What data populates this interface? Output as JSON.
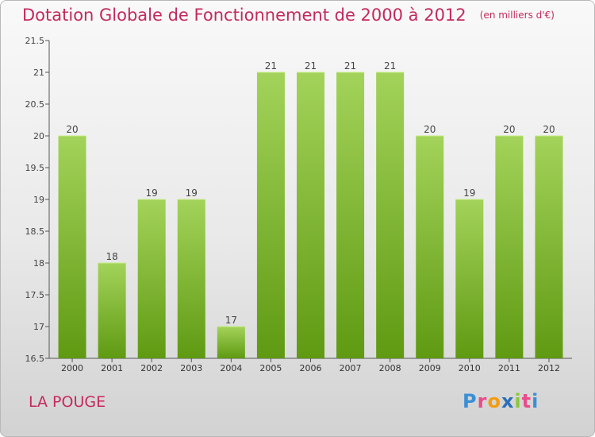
{
  "title": "Dotation Globale de Fonctionnement de 2000 à 2012",
  "subtitle": "(en milliers d'€)",
  "place": "LA POUGE",
  "logo": {
    "letters": [
      "P",
      "r",
      "o",
      "x",
      "i",
      "t",
      "i"
    ],
    "colors": [
      "#3a8fd6",
      "#e94c8a",
      "#f39c12",
      "#2c6fb7",
      "#8cc63f",
      "#e94c8a",
      "#3a8fd6"
    ]
  },
  "colors": {
    "bar_light": "#a3d35a",
    "bar_dark": "#5f9a12",
    "accent": "#c32a5a",
    "axis": "#555555"
  },
  "chart_data": {
    "type": "bar",
    "categories": [
      "2000",
      "2001",
      "2002",
      "2003",
      "2004",
      "2005",
      "2006",
      "2007",
      "2008",
      "2009",
      "2010",
      "2011",
      "2012"
    ],
    "values": [
      20,
      18,
      19,
      19,
      17,
      21,
      21,
      21,
      21,
      20,
      19,
      20,
      20
    ],
    "value_labels": [
      "20",
      "18",
      "19",
      "19",
      "17",
      "21",
      "21",
      "21",
      "21",
      "20",
      "19",
      "20",
      "20"
    ],
    "ylim": [
      16.5,
      21.5
    ],
    "yticks": [
      16.5,
      17,
      17.5,
      18,
      18.5,
      19,
      19.5,
      20,
      20.5,
      21,
      21.5
    ],
    "ytick_labels": [
      "16.5",
      "17",
      "17.5",
      "18",
      "18.5",
      "19",
      "19.5",
      "20",
      "20.5",
      "21",
      "21.5"
    ],
    "grid": false,
    "xlabel": "",
    "ylabel": ""
  }
}
